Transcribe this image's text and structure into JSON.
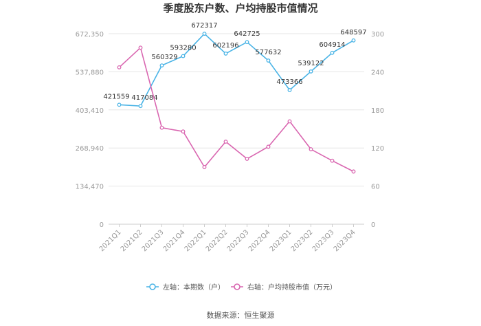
{
  "chart_data": {
    "type": "line",
    "title": "季度股东户数、户均持股市值情况",
    "categories": [
      "2021Q1",
      "2021Q2",
      "2021Q3",
      "2021Q4",
      "2022Q1",
      "2022Q2",
      "2022Q3",
      "2022Q4",
      "2023Q1",
      "2023Q2",
      "2023Q3",
      "2023Q4"
    ],
    "left_axis": {
      "ticks": [
        "0",
        "134,470",
        "268,940",
        "403,410",
        "537,880",
        "672,350"
      ],
      "range": [
        0,
        672350
      ]
    },
    "right_axis": {
      "ticks": [
        "0",
        "60",
        "120",
        "180",
        "240",
        "300"
      ],
      "range": [
        0,
        300
      ]
    },
    "series": [
      {
        "name": "左轴：本期数（户）",
        "axis": "left",
        "color": "#4ab4e6",
        "values": [
          421559,
          417084,
          560329,
          593280,
          672317,
          602196,
          642725,
          577632,
          473366,
          539122,
          604914,
          648597
        ],
        "labels": [
          "421559",
          "417084",
          "560329",
          "593280",
          "672317",
          "602196",
          "642725",
          "577632",
          "473366",
          "539122",
          "604914",
          "648597"
        ]
      },
      {
        "name": "右轴：户均持股市值（万元）",
        "axis": "right",
        "color": "#d966b0",
        "values": [
          247,
          278,
          152,
          146,
          90,
          130,
          103,
          122,
          162,
          118,
          100,
          83
        ]
      }
    ],
    "grid": true,
    "legend": "bottom"
  },
  "source": "数据来源：恒生聚源"
}
